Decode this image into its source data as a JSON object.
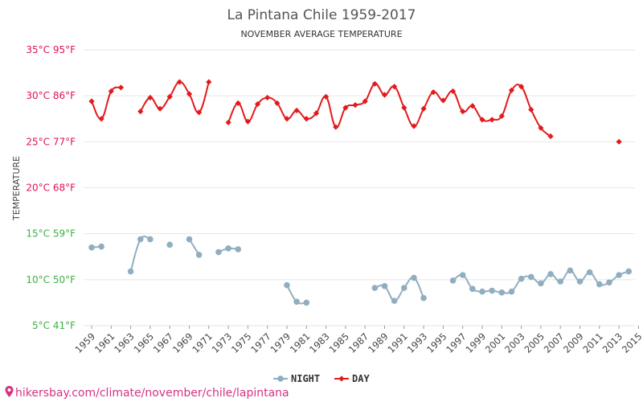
{
  "chart_data": {
    "type": "line",
    "title": "La Pintana Chile 1959-2017",
    "subtitle": "NOVEMBER AVERAGE TEMPERATURE",
    "ylabel": "TEMPERATURE",
    "ylim": [
      5,
      35
    ],
    "yticks": [
      {
        "value": 35,
        "label": "35°C 95°F",
        "color": "#e0105a"
      },
      {
        "value": 30,
        "label": "30°C 86°F",
        "color": "#e0105a"
      },
      {
        "value": 25,
        "label": "25°C 77°F",
        "color": "#e0105a"
      },
      {
        "value": 20,
        "label": "20°C 68°F",
        "color": "#e0105a"
      },
      {
        "value": 15,
        "label": "15°C 59°F",
        "color": "#3cb043"
      },
      {
        "value": 10,
        "label": "10°C 50°F",
        "color": "#3cb043"
      },
      {
        "value": 5,
        "label": "5°C 41°F",
        "color": "#3cb043"
      }
    ],
    "xlim": [
      1959,
      2017
    ],
    "xticks": [
      1959,
      1961,
      1963,
      1965,
      1967,
      1969,
      1971,
      1973,
      1975,
      1977,
      1979,
      1981,
      1983,
      1985,
      1987,
      1989,
      1991,
      1993,
      1995,
      1997,
      1999,
      2001,
      2003,
      2005,
      2007,
      2009,
      2011,
      2013,
      2015
    ],
    "grid": true,
    "legend_position": "bottom-center",
    "series": [
      {
        "name": "NIGHT",
        "color": "#90aec0",
        "marker": "circle",
        "points": [
          [
            1959,
            13.5
          ],
          [
            1960,
            13.6
          ],
          [
            1961,
            null
          ],
          [
            1962,
            null
          ],
          [
            1963,
            10.9
          ],
          [
            1964,
            14.4
          ],
          [
            1965,
            14.4
          ],
          [
            1966,
            null
          ],
          [
            1967,
            13.8
          ],
          [
            1968,
            null
          ],
          [
            1969,
            14.4
          ],
          [
            1970,
            12.7
          ],
          [
            1971,
            null
          ],
          [
            1972,
            13.0
          ],
          [
            1973,
            13.4
          ],
          [
            1974,
            13.3
          ],
          [
            1975,
            null
          ],
          [
            1976,
            null
          ],
          [
            1977,
            null
          ],
          [
            1978,
            null
          ],
          [
            1979,
            9.4
          ],
          [
            1980,
            7.6
          ],
          [
            1981,
            7.5
          ],
          [
            1982,
            null
          ],
          [
            1983,
            null
          ],
          [
            1984,
            null
          ],
          [
            1985,
            null
          ],
          [
            1986,
            null
          ],
          [
            1987,
            null
          ],
          [
            1988,
            9.1
          ],
          [
            1989,
            9.3
          ],
          [
            1990,
            7.7
          ],
          [
            1991,
            9.1
          ],
          [
            1992,
            10.2
          ],
          [
            1993,
            8.0
          ],
          [
            1994,
            null
          ],
          [
            1995,
            null
          ],
          [
            1996,
            9.9
          ],
          [
            1997,
            10.5
          ],
          [
            1998,
            9.0
          ],
          [
            1999,
            8.7
          ],
          [
            2000,
            8.8
          ],
          [
            2001,
            8.6
          ],
          [
            2002,
            8.7
          ],
          [
            2003,
            10.1
          ],
          [
            2004,
            10.3
          ],
          [
            2005,
            9.6
          ],
          [
            2006,
            10.6
          ],
          [
            2007,
            9.8
          ],
          [
            2008,
            11.0
          ],
          [
            2009,
            9.8
          ],
          [
            2010,
            10.8
          ],
          [
            2011,
            9.5
          ],
          [
            2012,
            9.7
          ],
          [
            2013,
            10.5
          ],
          [
            2014,
            10.9
          ]
        ]
      },
      {
        "name": "DAY",
        "color": "#e31a1c",
        "marker": "diamond",
        "points": [
          [
            1959,
            29.4
          ],
          [
            1960,
            27.5
          ],
          [
            1961,
            30.5
          ],
          [
            1962,
            30.9
          ],
          [
            1963,
            null
          ],
          [
            1964,
            28.3
          ],
          [
            1965,
            29.8
          ],
          [
            1966,
            28.6
          ],
          [
            1967,
            29.9
          ],
          [
            1968,
            31.5
          ],
          [
            1969,
            30.2
          ],
          [
            1970,
            28.2
          ],
          [
            1971,
            31.5
          ],
          [
            1972,
            null
          ],
          [
            1973,
            27.1
          ],
          [
            1974,
            29.2
          ],
          [
            1975,
            27.2
          ],
          [
            1976,
            29.1
          ],
          [
            1977,
            29.8
          ],
          [
            1978,
            29.2
          ],
          [
            1979,
            27.5
          ],
          [
            1980,
            28.4
          ],
          [
            1981,
            27.5
          ],
          [
            1982,
            28.1
          ],
          [
            1983,
            29.9
          ],
          [
            1984,
            26.6
          ],
          [
            1985,
            28.7
          ],
          [
            1986,
            29.0
          ],
          [
            1987,
            29.4
          ],
          [
            1988,
            31.3
          ],
          [
            1989,
            30.1
          ],
          [
            1990,
            31.0
          ],
          [
            1991,
            28.7
          ],
          [
            1992,
            26.7
          ],
          [
            1993,
            28.6
          ],
          [
            1994,
            30.4
          ],
          [
            1995,
            29.5
          ],
          [
            1996,
            30.5
          ],
          [
            1997,
            28.3
          ],
          [
            1998,
            28.9
          ],
          [
            1999,
            27.4
          ],
          [
            2000,
            27.4
          ],
          [
            2001,
            27.8
          ],
          [
            2002,
            30.6
          ],
          [
            2003,
            31.0
          ],
          [
            2004,
            28.5
          ],
          [
            2005,
            26.5
          ],
          [
            2006,
            25.6
          ],
          [
            2007,
            null
          ],
          [
            2008,
            null
          ],
          [
            2009,
            null
          ],
          [
            2010,
            null
          ],
          [
            2011,
            null
          ],
          [
            2012,
            null
          ],
          [
            2013,
            25.0
          ],
          [
            2014,
            null
          ]
        ]
      }
    ]
  },
  "footer": {
    "text": "hikersbay.com/climate/november/chile/lapintana"
  }
}
